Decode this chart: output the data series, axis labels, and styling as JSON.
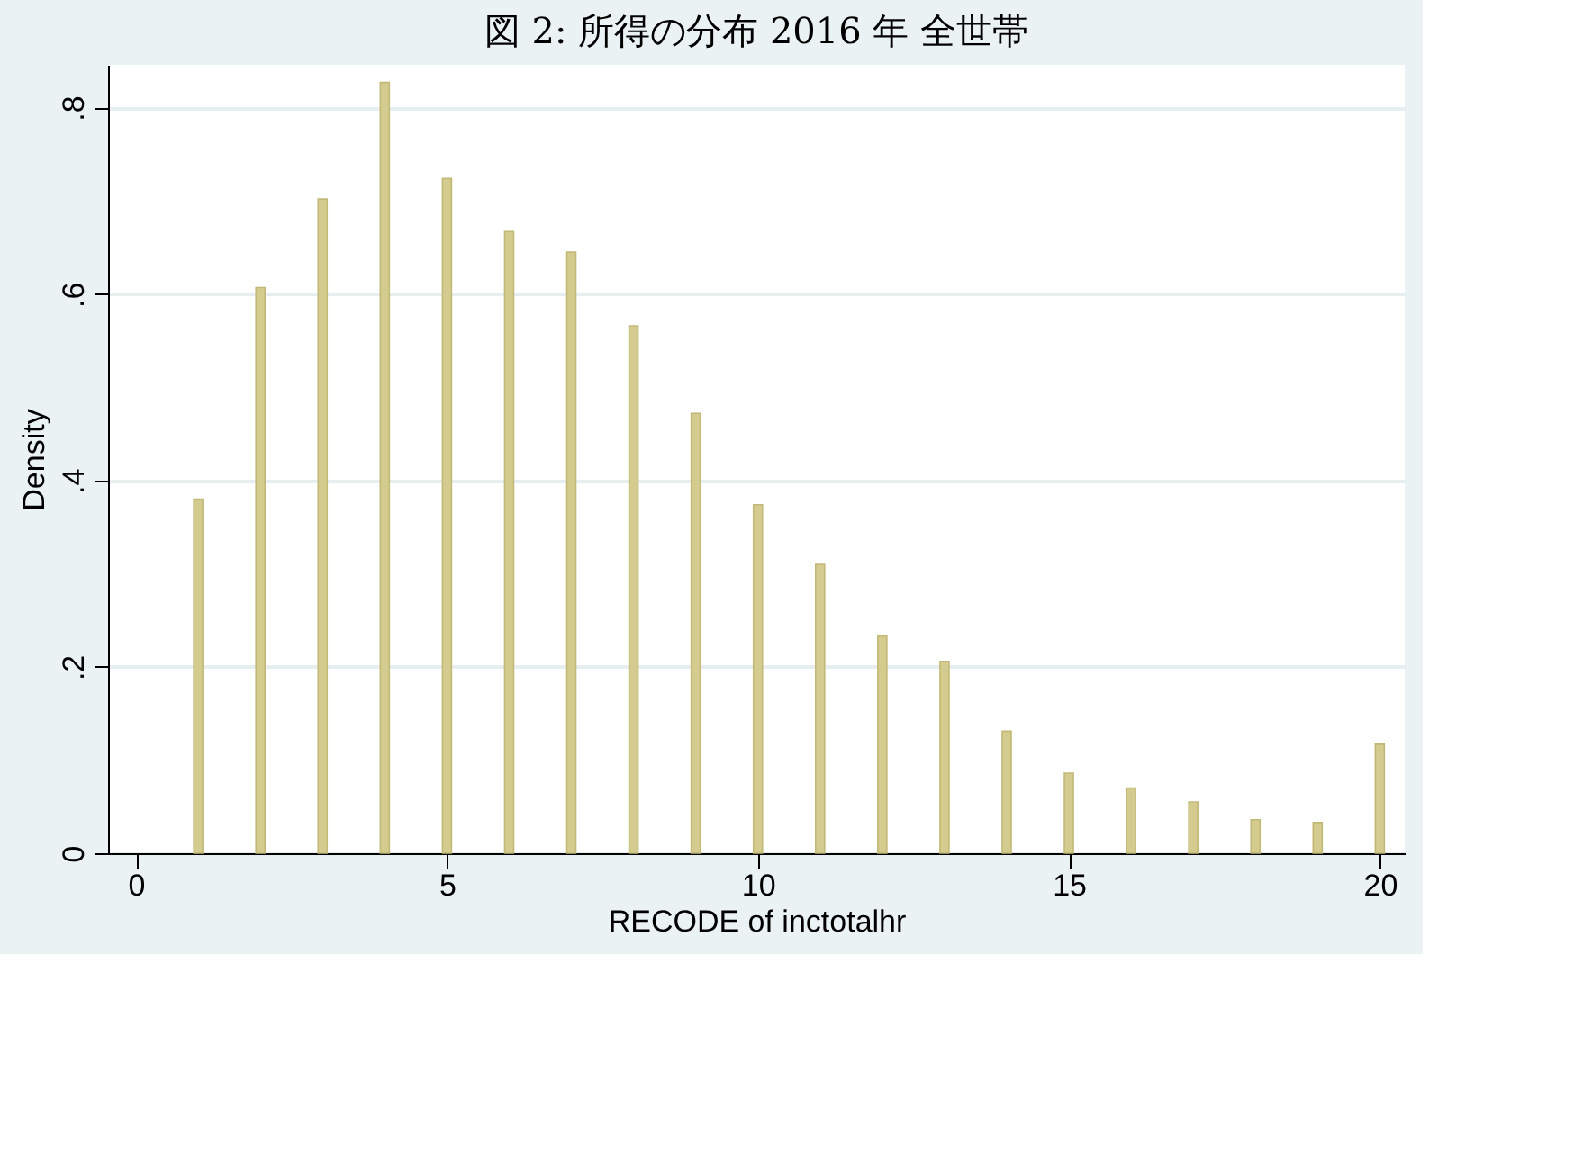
{
  "chart_data": {
    "type": "bar",
    "title": "図 2: 所得の分布 2016 年 全世帯",
    "xlabel": "RECODE of inctotalhr",
    "ylabel": "Density",
    "x": [
      1,
      2,
      3,
      4,
      5,
      6,
      7,
      8,
      9,
      10,
      11,
      12,
      13,
      14,
      15,
      16,
      17,
      18,
      19,
      20
    ],
    "series": [
      {
        "color": "#d4cc8e",
        "values": [
          0.38,
          0.607,
          0.702,
          0.827,
          0.724,
          0.667,
          0.645,
          0.566,
          0.472,
          0.374,
          0.31,
          0.233,
          0.206,
          0.131,
          0.086,
          0.07,
          0.055,
          0.036,
          0.033,
          0.117
        ]
      }
    ],
    "xlim": [
      -0.45,
      20.4
    ],
    "xticks": [
      0,
      5,
      10,
      15,
      20
    ],
    "ylim": [
      0,
      0.846
    ],
    "yticks": [
      0,
      {
        "value": 0.2,
        "label": ".2"
      },
      {
        "value": 0.4,
        "label": ".4"
      },
      {
        "value": 0.6,
        "label": ".6"
      },
      {
        "value": 0.8,
        "label": ".8"
      }
    ],
    "grid": "y",
    "legend": false
  }
}
